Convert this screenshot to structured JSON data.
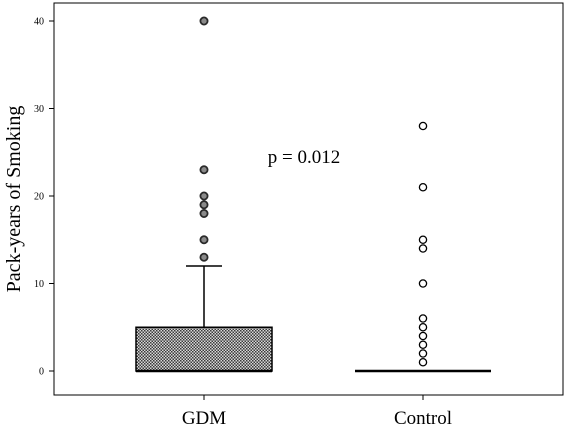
{
  "chart_data": {
    "type": "box",
    "title": "",
    "xlabel": "",
    "ylabel": "Pack-years of Smoking",
    "ylim": [
      0,
      40
    ],
    "yticks": [
      0,
      10,
      20,
      30,
      40
    ],
    "grid": false,
    "annotation": "p = 0.012",
    "series": [
      {
        "name": "GDM",
        "q1": 0,
        "median": 0,
        "q3": 5,
        "whisker_low": 0,
        "whisker_high": 12,
        "outliers": [
          13,
          15,
          18,
          19,
          20,
          23,
          40
        ],
        "box_fill": "crosshatch"
      },
      {
        "name": "Control",
        "q1": 0,
        "median": 0,
        "q3": 0,
        "whisker_low": 0,
        "whisker_high": 0,
        "outliers": [
          1,
          2,
          3,
          4,
          5,
          6,
          10,
          14,
          15,
          21,
          28
        ],
        "box_fill": "none"
      }
    ]
  }
}
